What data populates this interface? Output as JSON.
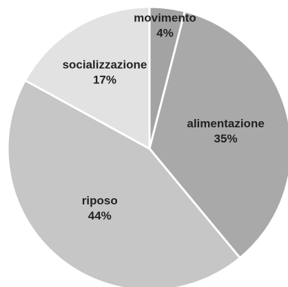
{
  "chart_data": {
    "type": "pie",
    "title": "",
    "slices": [
      {
        "label": "movimento",
        "value": 4,
        "value_label": "4%",
        "color": "#a3a3a3"
      },
      {
        "label": "alimentazione",
        "value": 35,
        "value_label": "35%",
        "color": "#a9a9a9"
      },
      {
        "label": "riposo",
        "value": 44,
        "value_label": "44%",
        "color": "#c6c6c6"
      },
      {
        "label": "socializzazione",
        "value": 17,
        "value_label": "17%",
        "color": "#e2e2e2"
      }
    ],
    "start_angle_deg": 0,
    "direction": "clockwise",
    "legend": "none",
    "separator_color": "#ffffff"
  }
}
